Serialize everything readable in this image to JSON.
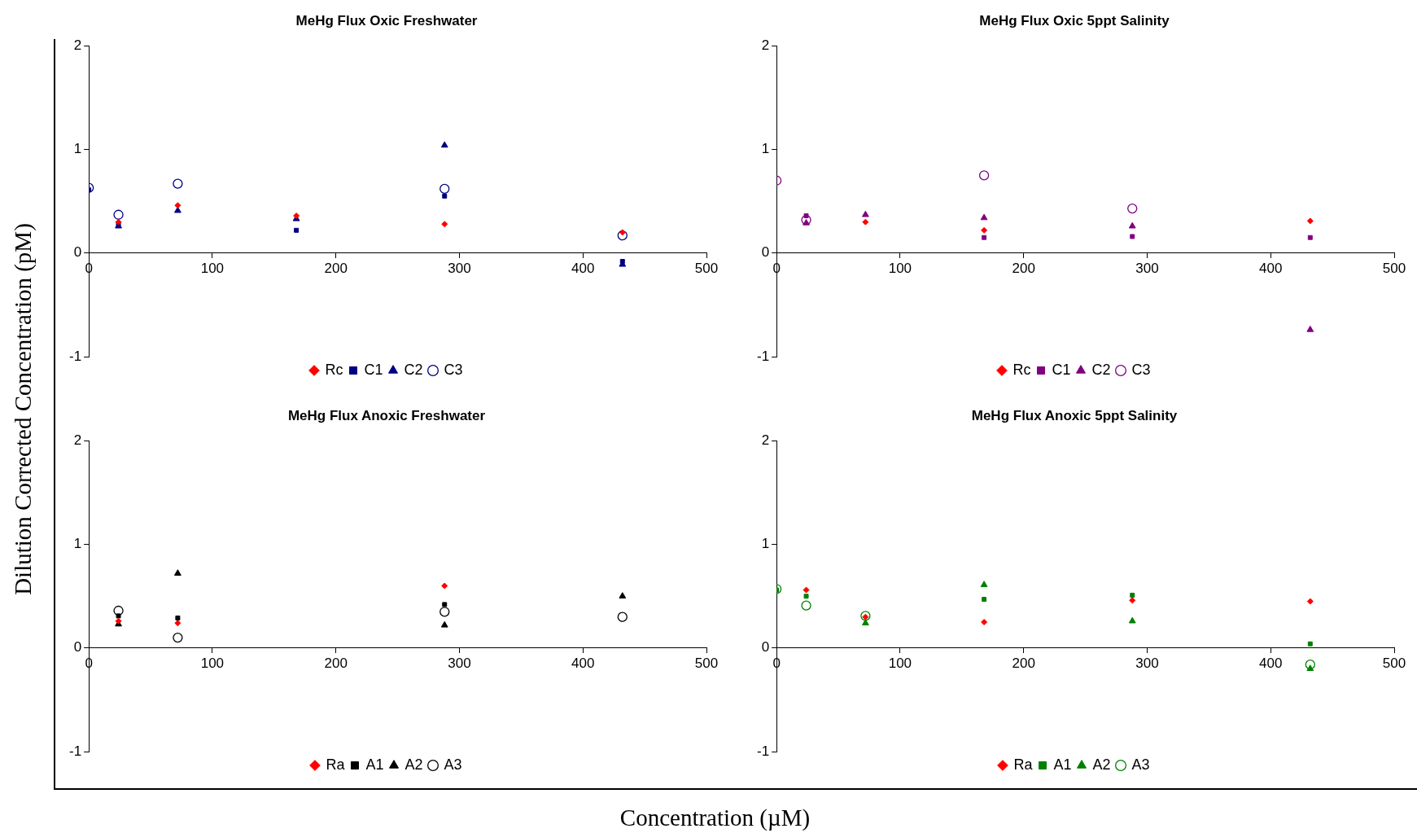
{
  "chart_data": [
    {
      "type": "scatter",
      "title": "MeHg Flux Oxic Freshwater",
      "xlabel": "Concentration (µM)",
      "ylabel": "Dilution Corrected Concentration (pM)",
      "x": [
        0,
        24,
        72,
        168,
        288,
        432
      ],
      "xlim": [
        0,
        500
      ],
      "xticks": [
        0,
        100,
        200,
        300,
        400,
        500
      ],
      "ylim": [
        -1,
        2
      ],
      "yticks": [
        -1,
        0,
        1,
        2
      ],
      "grid": false,
      "legend": "bottom",
      "series": [
        {
          "name": "Rc",
          "color": "#ff0000",
          "marker": "diamond",
          "values": [
            null,
            0.3,
            0.46,
            0.36,
            0.28,
            0.2
          ]
        },
        {
          "name": "C1",
          "color": "#000080",
          "marker": "square",
          "values": [
            0.61,
            0.28,
            null,
            0.22,
            0.55,
            -0.08
          ]
        },
        {
          "name": "C2",
          "color": "#000080",
          "marker": "triangle",
          "values": [
            null,
            0.26,
            0.41,
            0.33,
            1.04,
            -0.11
          ]
        },
        {
          "name": "C3",
          "color": "#000080",
          "marker": "circle",
          "values": [
            0.63,
            0.37,
            0.67,
            null,
            0.62,
            0.17
          ]
        }
      ]
    },
    {
      "type": "scatter",
      "title": "MeHg Flux Oxic 5ppt Salinity",
      "x": [
        0,
        24,
        72,
        168,
        288,
        432
      ],
      "xlim": [
        0,
        500
      ],
      "xticks": [
        0,
        100,
        200,
        300,
        400,
        500
      ],
      "ylim": [
        -1,
        2
      ],
      "yticks": [
        -1,
        0,
        1,
        2
      ],
      "grid": false,
      "legend": "bottom",
      "series": [
        {
          "name": "Rc",
          "color": "#ff0000",
          "marker": "diamond",
          "values": [
            null,
            null,
            0.3,
            0.22,
            null,
            0.31
          ]
        },
        {
          "name": "C1",
          "color": "#800080",
          "marker": "square",
          "values": [
            null,
            0.36,
            null,
            0.15,
            0.16,
            0.15
          ]
        },
        {
          "name": "C2",
          "color": "#800080",
          "marker": "triangle",
          "values": [
            null,
            0.29,
            0.37,
            0.34,
            0.26,
            -0.74
          ]
        },
        {
          "name": "C3",
          "color": "#800080",
          "marker": "circle",
          "values": [
            0.7,
            0.32,
            null,
            0.75,
            0.43,
            null
          ]
        }
      ]
    },
    {
      "type": "scatter",
      "title": "MeHg Flux Anoxic Freshwater",
      "x": [
        24,
        72,
        288,
        432
      ],
      "xlim": [
        0,
        500
      ],
      "xticks": [
        0,
        100,
        200,
        300,
        400,
        500
      ],
      "ylim": [
        -1,
        2
      ],
      "yticks": [
        -1,
        0,
        1,
        2
      ],
      "grid": false,
      "legend": "bottom",
      "series": [
        {
          "name": "Ra",
          "color": "#ff0000",
          "marker": "diamond",
          "values": [
            0.26,
            0.24,
            0.6,
            null
          ]
        },
        {
          "name": "A1",
          "color": "#000000",
          "marker": "square",
          "values": [
            0.31,
            0.29,
            0.42,
            null
          ]
        },
        {
          "name": "A2",
          "color": "#000000",
          "marker": "triangle",
          "values": [
            0.23,
            0.72,
            0.22,
            0.5
          ]
        },
        {
          "name": "A3",
          "color": "#000000",
          "marker": "circle",
          "values": [
            0.36,
            0.1,
            0.35,
            0.3
          ]
        }
      ]
    },
    {
      "type": "scatter",
      "title": "MeHg Flux Anoxic 5ppt Salinity",
      "x": [
        0,
        24,
        72,
        168,
        288,
        432
      ],
      "xlim": [
        0,
        500
      ],
      "xticks": [
        0,
        100,
        200,
        300,
        400,
        500
      ],
      "ylim": [
        -1,
        2
      ],
      "yticks": [
        -1,
        0,
        1,
        2
      ],
      "grid": false,
      "legend": "bottom",
      "series": [
        {
          "name": "Ra",
          "color": "#ff0000",
          "marker": "diamond",
          "values": [
            null,
            0.56,
            0.3,
            0.25,
            0.46,
            0.45
          ]
        },
        {
          "name": "A1",
          "color": "#008000",
          "marker": "square",
          "values": [
            0.56,
            0.5,
            null,
            0.47,
            0.51,
            0.04
          ]
        },
        {
          "name": "A2",
          "color": "#008000",
          "marker": "triangle",
          "values": [
            null,
            null,
            0.24,
            0.61,
            0.26,
            -0.2
          ]
        },
        {
          "name": "A3",
          "color": "#008000",
          "marker": "circle",
          "values": [
            0.57,
            0.41,
            0.31,
            null,
            null,
            -0.16
          ]
        }
      ]
    }
  ]
}
